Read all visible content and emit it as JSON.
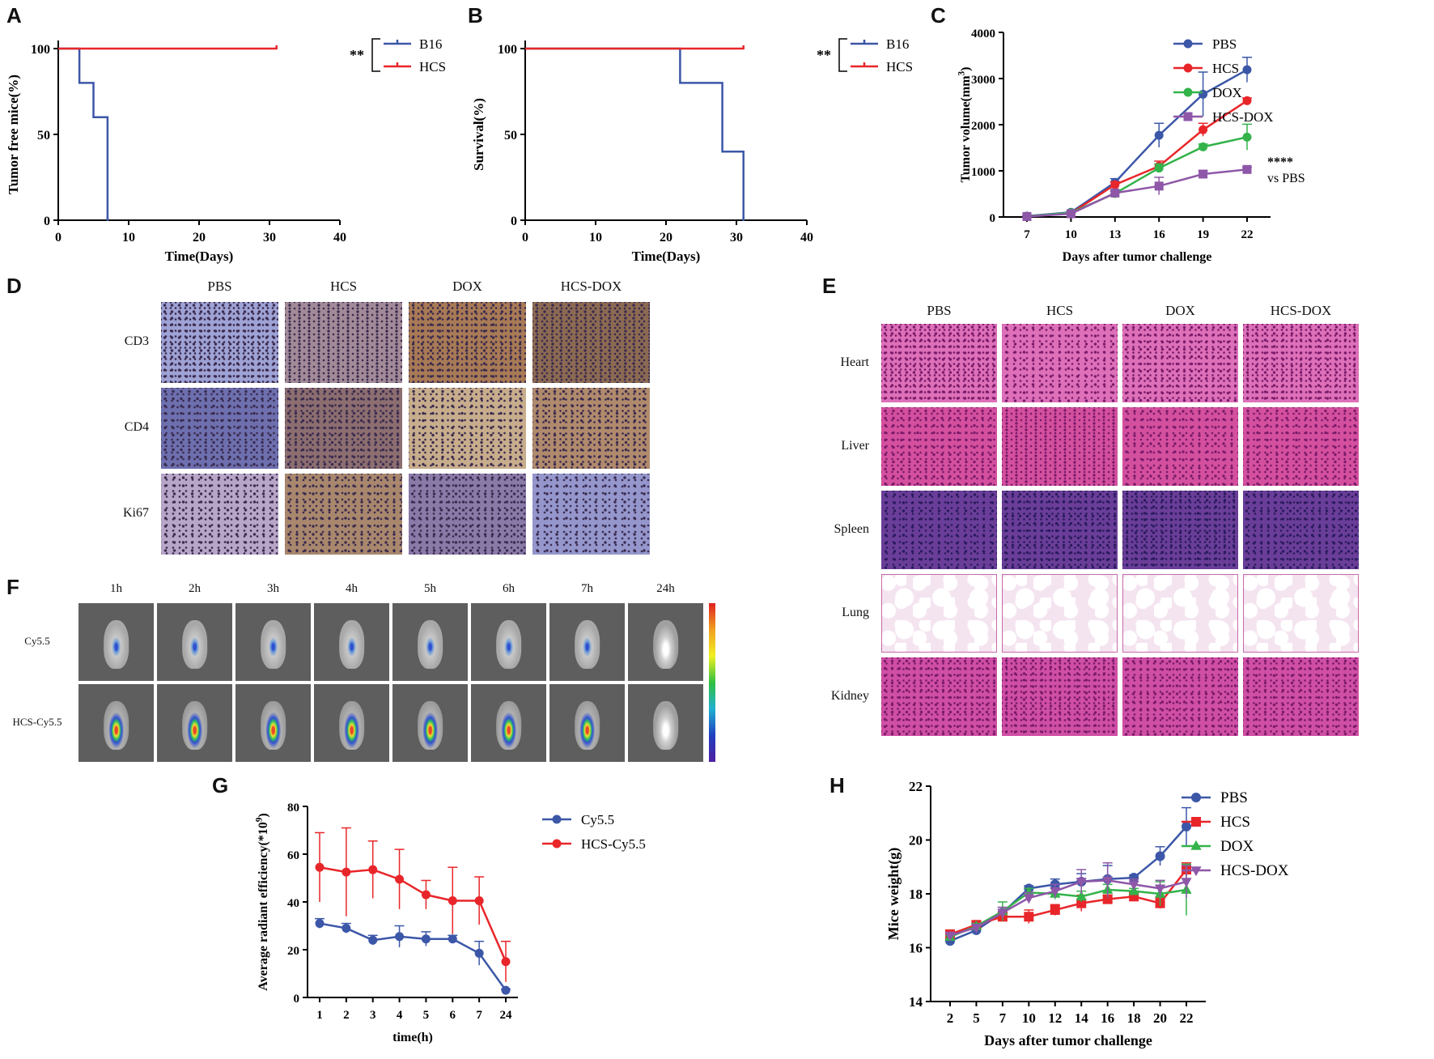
{
  "panels": {
    "A": {
      "letter": "A"
    },
    "B": {
      "letter": "B"
    },
    "C": {
      "letter": "C"
    },
    "D": {
      "letter": "D",
      "columns": [
        "PBS",
        "HCS",
        "DOX",
        "HCS-DOX"
      ],
      "rows": [
        "CD3",
        "CD4",
        "Ki67"
      ]
    },
    "E": {
      "letter": "E",
      "columns": [
        "PBS",
        "HCS",
        "DOX",
        "HCS-DOX"
      ],
      "rows": [
        "Heart",
        "Liver",
        "Spleen",
        "Lung",
        "Kidney"
      ]
    },
    "F": {
      "letter": "F",
      "columns": [
        "1h",
        "2h",
        "3h",
        "4h",
        "5h",
        "6h",
        "7h",
        "24h"
      ],
      "rows": [
        "Cy5.5",
        "HCS-Cy5.5"
      ]
    },
    "G": {
      "letter": "G"
    },
    "H": {
      "letter": "H"
    }
  },
  "colors": {
    "blue": "#3c57a8",
    "red": "#e8262a",
    "green": "#33b34a",
    "purple": "#8e57a8",
    "he_pink": "#d85aa8",
    "ihc_brown": "#9c6f4a",
    "ihc_blue": "#8e92c8"
  },
  "chart_data": [
    {
      "id": "A",
      "type": "line",
      "step": true,
      "xlabel": "Time(Days)",
      "ylabel": "Tumor free mice(%)",
      "xlim": [
        0,
        40
      ],
      "ylim": [
        0,
        100
      ],
      "xticks": [
        0,
        10,
        20,
        30,
        40
      ],
      "yticks": [
        0,
        50,
        100
      ],
      "annotation": "**",
      "series": [
        {
          "name": "B16",
          "color": "#3c57a8",
          "x": [
            0,
            3,
            3,
            5,
            5,
            7,
            7
          ],
          "y": [
            100,
            100,
            80,
            80,
            60,
            60,
            0
          ]
        },
        {
          "name": "HCS",
          "color": "#e8262a",
          "x": [
            0,
            31
          ],
          "y": [
            100,
            100
          ]
        }
      ]
    },
    {
      "id": "B",
      "type": "line",
      "step": true,
      "xlabel": "Time(Days)",
      "ylabel": "Survival(%)",
      "xlim": [
        0,
        40
      ],
      "ylim": [
        0,
        100
      ],
      "xticks": [
        0,
        10,
        20,
        30,
        40
      ],
      "yticks": [
        0,
        50,
        100
      ],
      "annotation": "**",
      "series": [
        {
          "name": "B16",
          "color": "#3c57a8",
          "x": [
            0,
            22,
            22,
            28,
            28,
            31,
            31
          ],
          "y": [
            100,
            100,
            80,
            80,
            40,
            40,
            0
          ]
        },
        {
          "name": "HCS",
          "color": "#e8262a",
          "x": [
            0,
            31
          ],
          "y": [
            100,
            100
          ]
        }
      ]
    },
    {
      "id": "C",
      "type": "line",
      "xlabel": "Days after tumor challenge",
      "ylabel": "Tumor volume(mm",
      "ylabel_sup": "3",
      "ylabel_end": ")",
      "categories": [
        "7",
        "10",
        "13",
        "16",
        "19",
        "22"
      ],
      "ylim": [
        0,
        4000
      ],
      "yticks": [
        0,
        1000,
        2000,
        3000,
        4000
      ],
      "annotation": "****",
      "annotation2": "vs PBS",
      "series": [
        {
          "name": "PBS",
          "color": "#3c57a8",
          "marker": "circle",
          "values": [
            20,
            100,
            750,
            1770,
            2660,
            3190
          ],
          "err": [
            10,
            20,
            80,
            260,
            480,
            270
          ]
        },
        {
          "name": "HCS",
          "color": "#e8262a",
          "marker": "circle",
          "values": [
            15,
            80,
            700,
            1100,
            1890,
            2520
          ],
          "err": [
            10,
            20,
            60,
            110,
            140,
            60
          ]
        },
        {
          "name": "DOX",
          "color": "#33b34a",
          "marker": "circle",
          "values": [
            15,
            90,
            510,
            1060,
            1520,
            1730
          ],
          "err": [
            10,
            20,
            50,
            90,
            60,
            280
          ]
        },
        {
          "name": "HCS-DOX",
          "color": "#8e57a8",
          "marker": "square",
          "values": [
            10,
            70,
            520,
            670,
            930,
            1030
          ],
          "err": [
            10,
            20,
            40,
            190,
            70,
            50
          ]
        }
      ]
    },
    {
      "id": "G",
      "type": "line",
      "xlabel": "time(h)",
      "ylabel": "Average radiant efficiency(*10",
      "ylabel_sup": "9",
      "ylabel_end": ")",
      "categories": [
        "1",
        "2",
        "3",
        "4",
        "5",
        "6",
        "7",
        "24"
      ],
      "ylim": [
        0,
        80
      ],
      "yticks": [
        0,
        20,
        40,
        60,
        80
      ],
      "series": [
        {
          "name": "Cy5.5",
          "color": "#3c57a8",
          "marker": "circle",
          "values": [
            31,
            29,
            24,
            25.5,
            24.5,
            24.5,
            18.5,
            3
          ],
          "err": [
            2,
            2,
            2,
            4.5,
            3,
            1.5,
            5,
            0.5
          ]
        },
        {
          "name": "HCS-Cy5.5",
          "color": "#e8262a",
          "marker": "circle",
          "values": [
            54.5,
            52.5,
            53.5,
            49.5,
            43,
            40.5,
            40.5,
            15
          ],
          "err": [
            14.5,
            18.5,
            12,
            12.5,
            6,
            14,
            10,
            8.5
          ]
        }
      ]
    },
    {
      "id": "H",
      "type": "line",
      "xlabel": "Days after tumor challenge",
      "ylabel": "Mice weight(g)",
      "categories": [
        "2",
        "5",
        "7",
        "10",
        "12",
        "14",
        "16",
        "18",
        "20",
        "22"
      ],
      "ylim": [
        14,
        22
      ],
      "yticks": [
        14,
        16,
        18,
        20,
        22
      ],
      "series": [
        {
          "name": "PBS",
          "color": "#3c57a8",
          "marker": "circle",
          "values": [
            16.25,
            16.65,
            17.3,
            18.2,
            18.35,
            18.45,
            18.55,
            18.6,
            19.4,
            20.5
          ],
          "err": [
            0.05,
            0.1,
            0.2,
            0.1,
            0.2,
            0.3,
            0.5,
            0.1,
            0.35,
            0.7
          ]
        },
        {
          "name": "HCS",
          "color": "#e8262a",
          "marker": "square",
          "values": [
            16.5,
            16.85,
            17.15,
            17.15,
            17.4,
            17.65,
            17.8,
            17.9,
            17.65,
            18.9
          ],
          "err": [
            0.05,
            0.1,
            0.15,
            0.25,
            0.2,
            0.3,
            0.15,
            0.1,
            0.2,
            0.25
          ]
        },
        {
          "name": "DOX",
          "color": "#33b34a",
          "marker": "triangle",
          "values": [
            16.4,
            16.8,
            17.35,
            18.05,
            18.0,
            17.9,
            18.15,
            18.1,
            18.0,
            18.15
          ],
          "err": [
            0.05,
            0.1,
            0.35,
            0.15,
            0.2,
            0.2,
            0.2,
            0.1,
            0.45,
            0.95
          ]
        },
        {
          "name": "HCS-DOX",
          "color": "#8e57a8",
          "marker": "triangle-down",
          "values": [
            16.45,
            16.75,
            17.3,
            17.85,
            18.1,
            18.45,
            18.5,
            18.35,
            18.2,
            18.45
          ],
          "err": [
            0.1,
            0.1,
            0.2,
            0.2,
            0.25,
            0.45,
            0.65,
            0.2,
            0.3,
            0.6
          ]
        }
      ]
    }
  ]
}
